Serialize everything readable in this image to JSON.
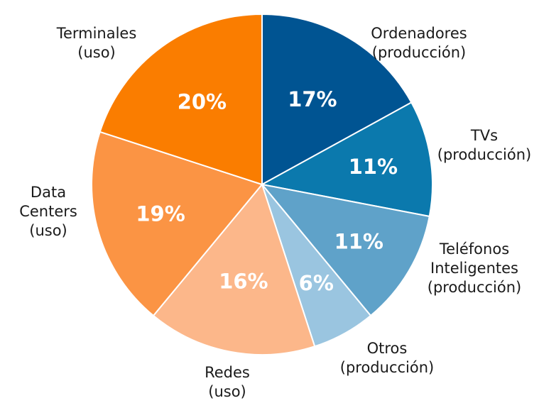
{
  "chart_data": {
    "type": "pie",
    "slices": [
      {
        "label": [
          "Ordenadores",
          "(producción)"
        ],
        "value": 17,
        "display": "17%",
        "color": "#005492"
      },
      {
        "label": [
          "TVs",
          "(producción)"
        ],
        "value": 11,
        "display": "11%",
        "color": "#0b79ad"
      },
      {
        "label": [
          "Teléfonos",
          "Inteligentes",
          "(producción)"
        ],
        "value": 11,
        "display": "11%",
        "color": "#5fa2c9"
      },
      {
        "label": [
          "Otros",
          "(producción)"
        ],
        "value": 6,
        "display": "6%",
        "color": "#9ac5e0"
      },
      {
        "label": [
          "Redes",
          "(uso)"
        ],
        "value": 16,
        "display": "16%",
        "color": "#fcb78a"
      },
      {
        "label": [
          "Data",
          "Centers",
          "(uso)"
        ],
        "value": 19,
        "display": "19%",
        "color": "#fb9444"
      },
      {
        "label": [
          "Terminales",
          "(uso)"
        ],
        "value": 20,
        "display": "20%",
        "color": "#fa7d00"
      }
    ]
  }
}
